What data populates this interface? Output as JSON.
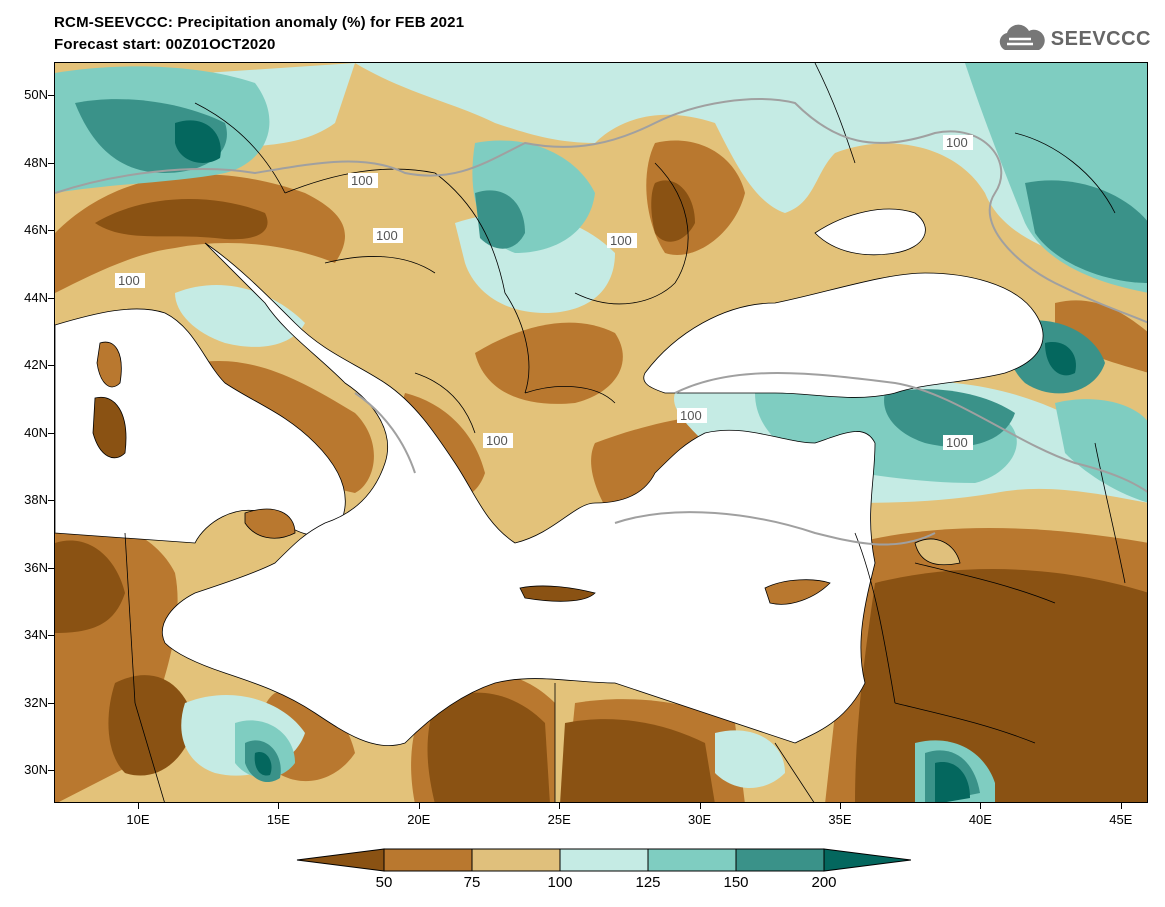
{
  "header": {
    "title_line1": "RCM-SEEVCCC: Precipitation anomaly (%) for FEB 2021",
    "title_line2": "Forecast start: 00Z01OCT2020",
    "logo_text": "SEEVCCC",
    "logo_icon": "cloud-icon"
  },
  "map": {
    "lat_labels": [
      "50N",
      "48N",
      "46N",
      "44N",
      "42N",
      "40N",
      "38N",
      "36N",
      "34N",
      "32N",
      "30N"
    ],
    "lon_labels": [
      "10E",
      "15E",
      "20E",
      "25E",
      "30E",
      "35E",
      "40E",
      "45E"
    ],
    "contour_label": "100",
    "sea_color": "#ffffff",
    "land_border_color": "#000000",
    "contour_color": "#a0a0a0"
  },
  "colorbar": {
    "labels": [
      "50",
      "75",
      "100",
      "125",
      "150",
      "200"
    ],
    "colors": [
      "#8a5213",
      "#b9782f",
      "#e0c07c",
      "#c5ebe4",
      "#7fcdc1",
      "#3a9289",
      "#04675e"
    ]
  }
}
